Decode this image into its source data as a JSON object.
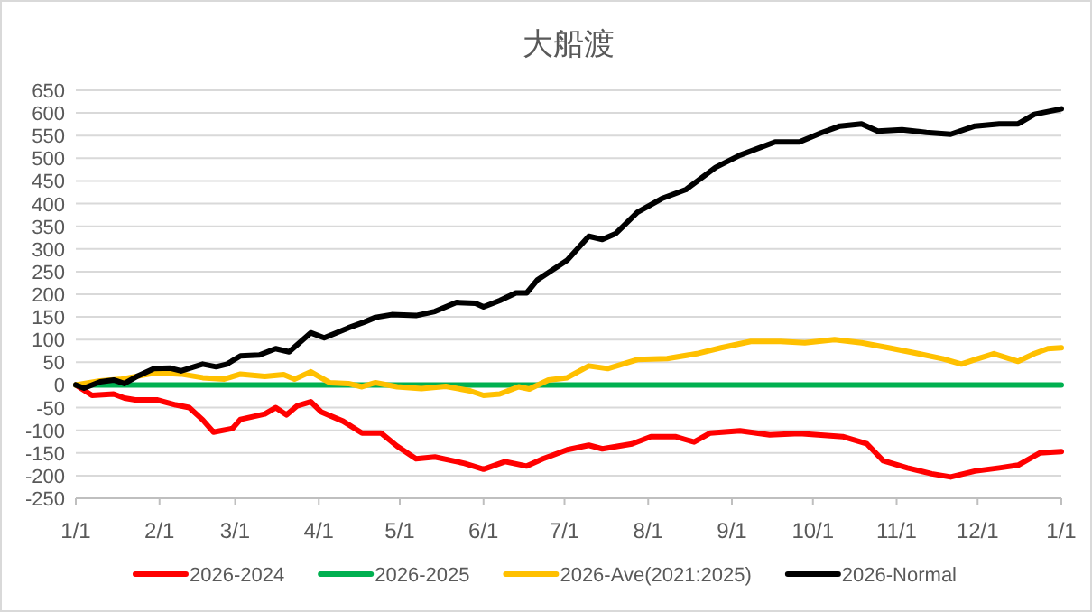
{
  "chart_data": {
    "type": "line",
    "title": "大船渡",
    "xlim": [
      "2026-01-01",
      "2027-01-01"
    ],
    "xticks": [
      {
        "value": "2026-01-01",
        "label": "1/1"
      },
      {
        "value": "2026-02-01",
        "label": "2/1"
      },
      {
        "value": "2026-03-01",
        "label": "3/1"
      },
      {
        "value": "2026-04-01",
        "label": "4/1"
      },
      {
        "value": "2026-05-01",
        "label": "5/1"
      },
      {
        "value": "2026-06-01",
        "label": "6/1"
      },
      {
        "value": "2026-07-01",
        "label": "7/1"
      },
      {
        "value": "2026-08-01",
        "label": "8/1"
      },
      {
        "value": "2026-09-01",
        "label": "9/1"
      },
      {
        "value": "2026-10-01",
        "label": "10/1"
      },
      {
        "value": "2026-11-01",
        "label": "11/1"
      },
      {
        "value": "2026-12-01",
        "label": "12/1"
      },
      {
        "value": "2027-01-01",
        "label": "1/1"
      }
    ],
    "ylim": [
      -250,
      650
    ],
    "yticks": [
      -250,
      -200,
      -150,
      -100,
      -50,
      0,
      50,
      100,
      150,
      200,
      250,
      300,
      350,
      400,
      450,
      500,
      550,
      600,
      650
    ],
    "grid": "y",
    "legend": "bottom",
    "series": [
      {
        "name": "2026-2024",
        "color": "#ff0000",
        "x": [
          "2026-01-01",
          "2026-01-07",
          "2026-01-15",
          "2026-01-19",
          "2026-01-23",
          "2026-01-31",
          "2026-02-07",
          "2026-02-12",
          "2026-02-17",
          "2026-02-21",
          "2026-02-28",
          "2026-03-03",
          "2026-03-12",
          "2026-03-16",
          "2026-03-20",
          "2026-03-24",
          "2026-03-29",
          "2026-04-02",
          "2026-04-10",
          "2026-04-17",
          "2026-04-24",
          "2026-04-30",
          "2026-05-07",
          "2026-05-14",
          "2026-05-25",
          "2026-06-01",
          "2026-06-09",
          "2026-06-17",
          "2026-06-23",
          "2026-07-02",
          "2026-07-10",
          "2026-07-15",
          "2026-07-26",
          "2026-08-02",
          "2026-08-11",
          "2026-08-18",
          "2026-08-24",
          "2026-09-04",
          "2026-09-15",
          "2026-09-26",
          "2026-10-12",
          "2026-10-21",
          "2026-10-27",
          "2026-11-05",
          "2026-11-14",
          "2026-11-21",
          "2026-11-30",
          "2026-12-09",
          "2026-12-16",
          "2026-12-24",
          "2027-01-01"
        ],
        "values": [
          0,
          -23,
          -20,
          -29,
          -33,
          -33,
          -44,
          -50,
          -77,
          -104,
          -96,
          -76,
          -64,
          -50,
          -66,
          -46,
          -37,
          -60,
          -80,
          -106,
          -106,
          -135,
          -163,
          -159,
          -173,
          -186,
          -169,
          -179,
          -163,
          -143,
          -133,
          -141,
          -130,
          -114,
          -114,
          -126,
          -106,
          -101,
          -110,
          -107,
          -114,
          -130,
          -167,
          -183,
          -196,
          -203,
          -190,
          -183,
          -177,
          -150,
          -147
        ]
      },
      {
        "name": "2026-2025",
        "color": "#00b050",
        "x": [
          "2026-01-01",
          "2027-01-01"
        ],
        "values": [
          0,
          0
        ]
      },
      {
        "name": "2026-Ave(2021:2025)",
        "color": "#ffc000",
        "x": [
          "2026-01-01",
          "2026-01-10",
          "2026-01-18",
          "2026-01-31",
          "2026-02-09",
          "2026-02-17",
          "2026-02-25",
          "2026-03-03",
          "2026-03-12",
          "2026-03-19",
          "2026-03-23",
          "2026-03-29",
          "2026-04-05",
          "2026-04-12",
          "2026-04-17",
          "2026-04-22",
          "2026-04-30",
          "2026-05-09",
          "2026-05-18",
          "2026-05-27",
          "2026-06-01",
          "2026-06-07",
          "2026-06-14",
          "2026-06-18",
          "2026-06-25",
          "2026-07-02",
          "2026-07-10",
          "2026-07-17",
          "2026-07-28",
          "2026-08-08",
          "2026-08-19",
          "2026-08-28",
          "2026-09-08",
          "2026-09-19",
          "2026-09-28",
          "2026-10-09",
          "2026-10-19",
          "2026-10-29",
          "2026-11-09",
          "2026-11-18",
          "2026-11-25",
          "2026-11-30",
          "2026-12-07",
          "2026-12-16",
          "2026-12-22",
          "2026-12-27",
          "2027-01-01"
        ],
        "values": [
          0,
          9,
          13,
          27,
          24,
          16,
          13,
          24,
          19,
          23,
          13,
          29,
          5,
          3,
          -4,
          5,
          -4,
          -8,
          -3,
          -13,
          -23,
          -20,
          -4,
          -9,
          11,
          16,
          42,
          36,
          56,
          58,
          69,
          82,
          96,
          96,
          93,
          100,
          93,
          82,
          69,
          58,
          46,
          56,
          69,
          52,
          69,
          80,
          82
        ]
      },
      {
        "name": "2026-Normal",
        "color": "#000000",
        "x": [
          "2026-01-01",
          "2026-01-04",
          "2026-01-10",
          "2026-01-15",
          "2026-01-19",
          "2026-01-24",
          "2026-01-30",
          "2026-02-05",
          "2026-02-09",
          "2026-02-17",
          "2026-02-22",
          "2026-02-26",
          "2026-03-03",
          "2026-03-10",
          "2026-03-16",
          "2026-03-21",
          "2026-03-29",
          "2026-04-03",
          "2026-04-12",
          "2026-04-18",
          "2026-04-22",
          "2026-04-28",
          "2026-05-07",
          "2026-05-14",
          "2026-05-22",
          "2026-05-29",
          "2026-06-01",
          "2026-06-07",
          "2026-06-13",
          "2026-06-17",
          "2026-06-21",
          "2026-07-02",
          "2026-07-10",
          "2026-07-15",
          "2026-07-20",
          "2026-07-28",
          "2026-08-06",
          "2026-08-15",
          "2026-08-26",
          "2026-09-04",
          "2026-09-17",
          "2026-09-26",
          "2026-10-04",
          "2026-10-11",
          "2026-10-19",
          "2026-10-25",
          "2026-11-03",
          "2026-11-12",
          "2026-11-21",
          "2026-11-30",
          "2026-12-09",
          "2026-12-16",
          "2026-12-22",
          "2027-01-01"
        ],
        "values": [
          0,
          -7,
          7,
          11,
          3,
          20,
          36,
          37,
          31,
          46,
          40,
          46,
          64,
          66,
          80,
          73,
          115,
          104,
          126,
          139,
          149,
          155,
          153,
          162,
          182,
          180,
          172,
          186,
          203,
          203,
          232,
          275,
          328,
          321,
          334,
          381,
          411,
          431,
          480,
          507,
          536,
          536,
          556,
          571,
          576,
          560,
          563,
          557,
          553,
          571,
          576,
          576,
          597,
          609
        ]
      }
    ]
  }
}
